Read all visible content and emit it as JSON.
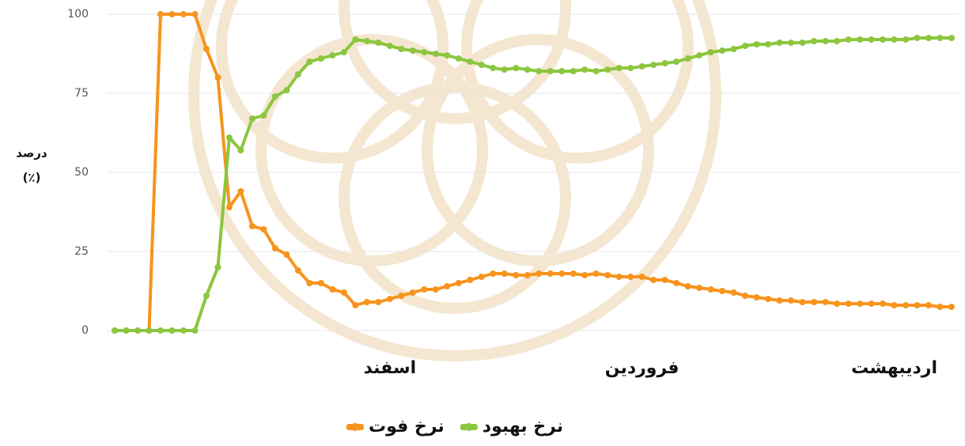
{
  "chart_data": {
    "type": "line",
    "ylabel": [
      "درصد",
      "(٪)"
    ],
    "categories": [
      null,
      null,
      null,
      null,
      null,
      null,
      null,
      null,
      null,
      null,
      null,
      null,
      null,
      null,
      null,
      null,
      null,
      null,
      null,
      null,
      null,
      null,
      null,
      null,
      "اسفند",
      null,
      null,
      null,
      null,
      null,
      null,
      null,
      null,
      null,
      null,
      null,
      null,
      null,
      null,
      null,
      null,
      null,
      null,
      null,
      null,
      null,
      "فروردین",
      null,
      null,
      null,
      null,
      null,
      null,
      null,
      null,
      null,
      null,
      null,
      null,
      null,
      null,
      null,
      null,
      null,
      null,
      null,
      null,
      null,
      "اردیبهشت",
      null,
      null,
      null,
      null,
      null
    ],
    "series": [
      {
        "name": "نرخ فوت",
        "color": "#f7941d",
        "values": [
          0,
          0,
          0,
          0,
          100,
          100,
          100,
          100,
          89,
          80,
          39,
          44,
          33,
          32,
          26,
          24,
          19,
          15,
          15,
          13,
          12,
          8,
          9,
          9,
          10,
          11,
          12,
          13,
          13,
          14,
          15,
          16,
          17,
          18,
          18,
          17.5,
          17.5,
          18,
          18,
          18,
          18,
          17.5,
          18,
          17.5,
          17,
          17,
          17,
          16,
          16,
          15,
          14,
          13.5,
          13,
          12.5,
          12,
          11,
          10.5,
          10,
          9.5,
          9.5,
          9,
          9,
          9,
          8.5,
          8.5,
          8.5,
          8.5,
          8.5,
          8,
          8,
          8,
          8,
          7.5,
          7.5
        ]
      },
      {
        "name": "نرخ بهبود",
        "color": "#8cc63f",
        "values": [
          0,
          0,
          0,
          0,
          0,
          0,
          0,
          0,
          11,
          20,
          61,
          57,
          67,
          68,
          74,
          76,
          81,
          85,
          86,
          87,
          88,
          92,
          91.5,
          91,
          90,
          89,
          88.5,
          88,
          87.5,
          87,
          86,
          85,
          84,
          83,
          82.5,
          83,
          82.5,
          82,
          82,
          82,
          82,
          82.5,
          82,
          82.5,
          83,
          83,
          83.5,
          84,
          84.5,
          85,
          86,
          87,
          88,
          88.5,
          89,
          90,
          90.5,
          90.5,
          91,
          91,
          91,
          91.5,
          91.5,
          91.5,
          92,
          92,
          92,
          92,
          92,
          92,
          92.5,
          92.5,
          92.5,
          92.5
        ]
      }
    ],
    "ylim": [
      0,
      100
    ],
    "yticks": [
      0,
      25,
      50,
      75,
      100
    ],
    "grid": true
  }
}
